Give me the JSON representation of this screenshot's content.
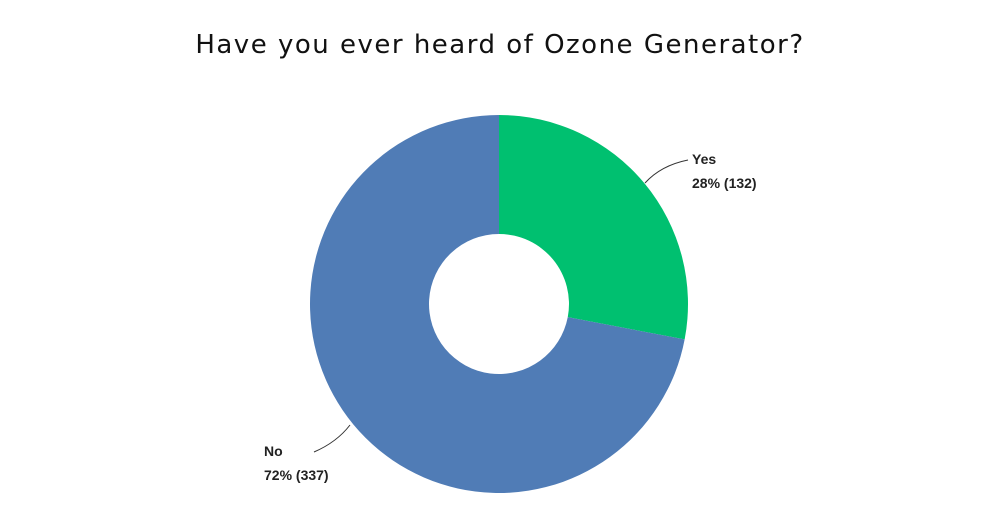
{
  "chart_data": {
    "type": "pie",
    "title": "Have you ever heard of Ozone Generator?",
    "donut": true,
    "slices": [
      {
        "label": "Yes",
        "percent": 28,
        "count": 132,
        "value_text": "28% (132)",
        "color": "#00C070"
      },
      {
        "label": "No",
        "percent": 72,
        "count": 337,
        "value_text": "72% (337)",
        "color": "#507CB6"
      }
    ],
    "start_angle_deg": 0,
    "direction": "clockwise",
    "legend": "none"
  }
}
